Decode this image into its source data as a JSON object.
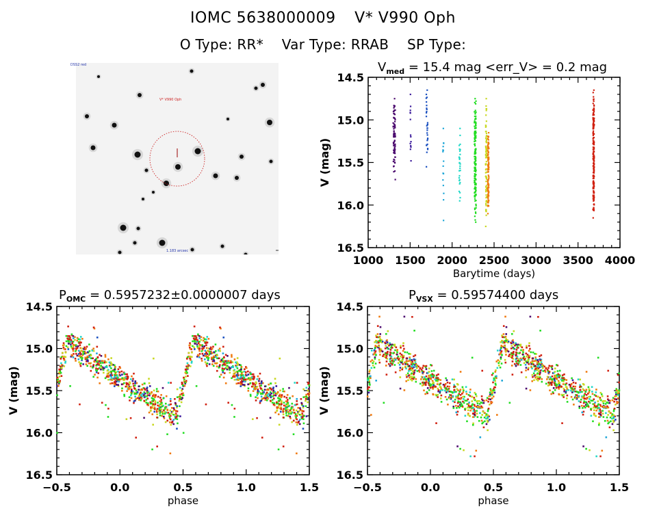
{
  "header": {
    "object_id": "IOMC 5638000009",
    "star_name": "V* V990 Oph",
    "o_type": "O Type: RR*",
    "var_type": "Var Type: RRAB",
    "sp_type": "SP Type:"
  },
  "finder_image": {
    "target_label": "V* V990 Oph",
    "corner_top_left": "DSS2 red",
    "bottom_center": "1.183 arcsec",
    "marker": "dashed-circle"
  },
  "chart_data": [
    {
      "id": "light-curve",
      "type": "scatter",
      "title_main": "V",
      "title_sub": "med",
      "title_rest": " = 15.4 mag <err_V> = 0.2 mag",
      "xlabel": "Barytime (days)",
      "ylabel": "V (mag)",
      "xlim": [
        1000,
        4000
      ],
      "ylim": [
        16.5,
        14.5
      ],
      "y_inverted": true,
      "xticks": [
        1000,
        1500,
        2000,
        2500,
        3000,
        3500,
        4000
      ],
      "yticks": [
        "14.5",
        "15.0",
        "15.5",
        "16.0",
        "16.5"
      ],
      "grid": false,
      "clusters": [
        {
          "x": 1310,
          "width": 25,
          "vmin": 14.75,
          "vmax": 15.7,
          "n": 80,
          "color": "#4b0a6e"
        },
        {
          "x": 1505,
          "width": 10,
          "vmin": 14.7,
          "vmax": 15.48,
          "n": 14,
          "color": "#3a1a9a"
        },
        {
          "x": 1700,
          "width": 18,
          "vmin": 14.65,
          "vmax": 15.55,
          "n": 30,
          "color": "#1a50c0"
        },
        {
          "x": 1895,
          "width": 10,
          "vmin": 15.1,
          "vmax": 16.18,
          "n": 16,
          "color": "#22a8d8"
        },
        {
          "x": 2090,
          "width": 14,
          "vmin": 15.1,
          "vmax": 15.95,
          "n": 30,
          "color": "#22d8c8"
        },
        {
          "x": 2275,
          "width": 20,
          "vmin": 14.75,
          "vmax": 16.2,
          "n": 160,
          "color": "#22dd22"
        },
        {
          "x": 2405,
          "width": 12,
          "vmin": 14.75,
          "vmax": 16.25,
          "n": 80,
          "color": "#c8d820"
        },
        {
          "x": 2430,
          "width": 14,
          "vmin": 15.15,
          "vmax": 16.1,
          "n": 120,
          "color": "#f07a10"
        },
        {
          "x": 3685,
          "width": 14,
          "vmin": 14.65,
          "vmax": 16.15,
          "n": 200,
          "color": "#d02010"
        }
      ]
    },
    {
      "id": "phase-omc",
      "type": "scatter",
      "title_main": "P",
      "title_sub": "OMC",
      "title_rest": " = 0.5957232±0.0000007 days",
      "period_days": 0.5957232,
      "period_err_days": 7e-07,
      "xlabel": "phase",
      "ylabel": "V (mag)",
      "xlim": [
        -0.5,
        1.5
      ],
      "ylim": [
        16.5,
        14.5
      ],
      "y_inverted": true,
      "xticks": [
        "-0.5",
        "0.0",
        "0.5",
        "1.0",
        "1.5"
      ],
      "yticks": [
        "14.5",
        "15.0",
        "15.5",
        "16.0",
        "16.5"
      ],
      "grid": false,
      "curve": {
        "max_phase": 0.58,
        "max_mag": 14.9,
        "min_phase": 0.45,
        "min_mag": 15.8,
        "scatter": 0.18
      },
      "n_points": 700
    },
    {
      "id": "phase-vsx",
      "type": "scatter",
      "title_main": "P",
      "title_sub": "VSX",
      "title_rest": " = 0.59574400 days",
      "period_days": 0.595744,
      "xlabel": "phase",
      "ylabel": "V (mag)",
      "xlim": [
        -0.5,
        1.5
      ],
      "ylim": [
        16.5,
        14.5
      ],
      "y_inverted": true,
      "xticks": [
        "-0.5",
        "0.0",
        "0.5",
        "1.0",
        "1.5"
      ],
      "yticks": [
        "14.5",
        "15.0",
        "15.5",
        "16.0",
        "16.5"
      ],
      "grid": false,
      "curve": {
        "max_phase": 0.58,
        "max_mag": 14.92,
        "min_phase": 0.45,
        "min_mag": 15.8,
        "scatter": 0.2
      },
      "n_points": 700
    }
  ],
  "series_colors": [
    "#4b0a6e",
    "#3a1a9a",
    "#1a50c0",
    "#22a8d8",
    "#22d8c8",
    "#22dd22",
    "#c8d820",
    "#f07a10",
    "#d02010"
  ]
}
